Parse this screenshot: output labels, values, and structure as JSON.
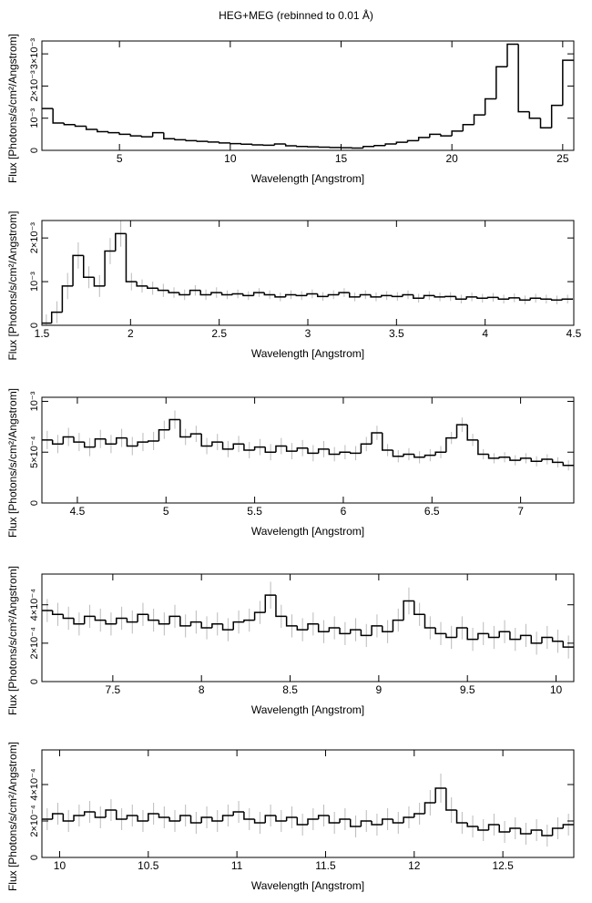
{
  "title": "HEG+MEG (rebinned to 0.01 Å)",
  "chart_data": [
    {
      "type": "step",
      "x_label": "Wavelength [Angstrom]",
      "y_label": "Flux [Photons/s/cm²/Angstrom]",
      "color": "#000000",
      "xlim": [
        1.5,
        25.5
      ],
      "ylim": [
        0,
        0.0034
      ],
      "xticks": [
        5,
        10,
        15,
        20,
        25
      ],
      "yticks": [
        0,
        {
          "value": 0.001,
          "label": "10⁻³"
        },
        {
          "value": 0.002,
          "label": "2×10⁻³"
        },
        {
          "value": 0.003,
          "label": "3×10⁻³"
        }
      ],
      "x": [
        1.75,
        2.25,
        2.75,
        3.25,
        3.75,
        4.25,
        4.75,
        5.25,
        5.75,
        6.25,
        6.75,
        7.25,
        7.75,
        8.25,
        8.75,
        9.25,
        9.75,
        10.25,
        10.75,
        11.25,
        11.75,
        12.25,
        12.75,
        13.25,
        13.75,
        14.25,
        14.75,
        15.25,
        15.75,
        16.25,
        16.75,
        17.25,
        17.75,
        18.25,
        18.75,
        19.25,
        19.75,
        20.25,
        20.75,
        21.25,
        21.75,
        22.25,
        22.75,
        23.25,
        23.75,
        24.25,
        24.75,
        25.25
      ],
      "values": [
        0.0013,
        0.00085,
        0.0008,
        0.00075,
        0.00065,
        0.00058,
        0.00055,
        0.0005,
        0.00045,
        0.00042,
        0.00055,
        0.00036,
        0.00033,
        0.0003,
        0.00028,
        0.00026,
        0.00023,
        0.00021,
        0.00019,
        0.00017,
        0.00016,
        0.0002,
        0.00014,
        0.00012,
        0.00011,
        0.0001,
        9e-05,
        8e-05,
        7e-05,
        0.00012,
        0.00015,
        0.0002,
        0.00025,
        0.0003,
        0.0004,
        0.0005,
        0.00045,
        0.0006,
        0.0008,
        0.0011,
        0.0016,
        0.0026,
        0.0033,
        0.0012,
        0.001,
        0.0007,
        0.0014,
        0.0028
      ]
    },
    {
      "type": "step",
      "x_label": "Wavelength [Angstrom]",
      "y_label": "Flux [Photons/s/cm²/Angstrom]",
      "color": "#000000",
      "error_color": "#bbbbbb",
      "xlim": [
        1.5,
        4.5
      ],
      "ylim": [
        0,
        0.0024
      ],
      "xticks": [
        1.5,
        2,
        2.5,
        3,
        3.5,
        4,
        4.5
      ],
      "yticks": [
        0,
        {
          "value": 0.001,
          "label": "10⁻³"
        },
        {
          "value": 0.002,
          "label": "2×10⁻³"
        }
      ],
      "x": [
        1.525,
        1.585,
        1.645,
        1.705,
        1.765,
        1.825,
        1.885,
        1.945,
        2.005,
        2.065,
        2.125,
        2.185,
        2.245,
        2.305,
        2.365,
        2.425,
        2.485,
        2.545,
        2.605,
        2.665,
        2.725,
        2.785,
        2.845,
        2.905,
        2.965,
        3.025,
        3.085,
        3.145,
        3.205,
        3.265,
        3.325,
        3.385,
        3.445,
        3.505,
        3.565,
        3.625,
        3.685,
        3.745,
        3.805,
        3.865,
        3.925,
        3.985,
        4.045,
        4.105,
        4.165,
        4.225,
        4.285,
        4.345,
        4.405,
        4.465
      ],
      "values": [
        5e-05,
        0.0003,
        0.0009,
        0.0016,
        0.0011,
        0.0009,
        0.0017,
        0.0021,
        0.001,
        0.0009,
        0.00085,
        0.0008,
        0.00075,
        0.0007,
        0.0008,
        0.0007,
        0.00075,
        0.0007,
        0.00072,
        0.00068,
        0.00075,
        0.0007,
        0.00065,
        0.0007,
        0.00068,
        0.00072,
        0.00066,
        0.0007,
        0.00075,
        0.00065,
        0.0007,
        0.00065,
        0.00068,
        0.00066,
        0.0007,
        0.00062,
        0.00068,
        0.00065,
        0.00066,
        0.0006,
        0.00065,
        0.00062,
        0.00064,
        0.0006,
        0.00063,
        0.00058,
        0.00062,
        0.0006,
        0.00058,
        0.0006
      ],
      "errors": [
        0.0002,
        0.00025,
        0.0003,
        0.0003,
        0.00025,
        0.00025,
        0.0003,
        0.0003,
        0.0002,
        0.00015,
        0.00015,
        0.00015,
        0.00012,
        0.00012,
        0.00012,
        0.00012,
        0.00012,
        0.0001,
        0.0001,
        0.0001,
        0.0001,
        0.0001,
        0.0001,
        0.0001,
        0.0001,
        0.0001,
        0.0001,
        0.0001,
        0.0001,
        0.0001,
        0.0001,
        0.0001,
        0.0001,
        0.0001,
        0.0001,
        0.0001,
        0.0001,
        0.0001,
        0.0001,
        0.0001,
        0.0001,
        0.0001,
        0.0001,
        0.0001,
        0.0001,
        0.0001,
        0.0001,
        0.0001,
        0.0001,
        0.0001
      ]
    },
    {
      "type": "step",
      "x_label": "Wavelength [Angstrom]",
      "y_label": "Flux [Photons/s/cm²/Angstrom]",
      "color": "#000000",
      "error_color": "#bbbbbb",
      "xlim": [
        4.3,
        7.3
      ],
      "ylim": [
        0,
        0.00104
      ],
      "xticks": [
        4.5,
        5,
        5.5,
        6,
        6.5,
        7
      ],
      "yticks": [
        0,
        {
          "value": 0.0005,
          "label": "5×10⁻⁴"
        },
        {
          "value": 0.001,
          "label": "10⁻³"
        }
      ],
      "x": [
        4.33,
        4.39,
        4.45,
        4.51,
        4.57,
        4.63,
        4.69,
        4.75,
        4.81,
        4.87,
        4.93,
        4.99,
        5.05,
        5.11,
        5.17,
        5.23,
        5.29,
        5.35,
        5.41,
        5.47,
        5.53,
        5.59,
        5.65,
        5.71,
        5.77,
        5.83,
        5.89,
        5.95,
        6.01,
        6.07,
        6.13,
        6.19,
        6.25,
        6.31,
        6.37,
        6.43,
        6.49,
        6.55,
        6.61,
        6.67,
        6.73,
        6.79,
        6.85,
        6.91,
        6.97,
        7.03,
        7.09,
        7.15,
        7.21,
        7.27
      ],
      "values": [
        0.00062,
        0.00058,
        0.00065,
        0.0006,
        0.00055,
        0.00063,
        0.00058,
        0.00064,
        0.00056,
        0.0006,
        0.00061,
        0.00072,
        0.00082,
        0.00065,
        0.00068,
        0.00056,
        0.0006,
        0.00053,
        0.00058,
        0.00052,
        0.00055,
        0.0005,
        0.00056,
        0.00051,
        0.00054,
        0.00049,
        0.00053,
        0.00048,
        0.0005,
        0.00049,
        0.00058,
        0.00069,
        0.00052,
        0.00046,
        0.00048,
        0.00045,
        0.00047,
        0.0005,
        0.00064,
        0.00077,
        0.00062,
        0.00048,
        0.00044,
        0.00045,
        0.00042,
        0.00044,
        0.00041,
        0.00043,
        0.0004,
        0.00037
      ],
      "errors": [
        9e-05,
        9e-05,
        9e-05,
        9e-05,
        9e-05,
        9e-05,
        9e-05,
        9e-05,
        9e-05,
        9e-05,
        9e-05,
        9e-05,
        9e-05,
        8e-05,
        8e-05,
        8e-05,
        8e-05,
        8e-05,
        8e-05,
        8e-05,
        8e-05,
        8e-05,
        8e-05,
        8e-05,
        8e-05,
        8e-05,
        8e-05,
        7e-05,
        7e-05,
        7e-05,
        7e-05,
        7e-05,
        6e-05,
        6e-05,
        6e-05,
        6e-05,
        6e-05,
        6e-05,
        6e-05,
        7e-05,
        6e-05,
        5e-05,
        5e-05,
        5e-05,
        5e-05,
        5e-05,
        5e-05,
        5e-05,
        5e-05,
        5e-05
      ]
    },
    {
      "type": "step",
      "x_label": "Wavelength [Angstrom]",
      "y_label": "Flux [Photons/s/cm²/Angstrom]",
      "color": "#000000",
      "error_color": "#bbbbbb",
      "xlim": [
        7.1,
        10.1
      ],
      "ylim": [
        0,
        0.00056
      ],
      "xticks": [
        7.5,
        8,
        8.5,
        9,
        9.5,
        10
      ],
      "yticks": [
        0,
        {
          "value": 0.0002,
          "label": "2×10⁻⁴"
        },
        {
          "value": 0.0004,
          "label": "4×10⁻⁴"
        }
      ],
      "x": [
        7.13,
        7.19,
        7.25,
        7.31,
        7.37,
        7.43,
        7.49,
        7.55,
        7.61,
        7.67,
        7.73,
        7.79,
        7.85,
        7.91,
        7.97,
        8.03,
        8.09,
        8.15,
        8.21,
        8.27,
        8.33,
        8.39,
        8.45,
        8.51,
        8.57,
        8.63,
        8.69,
        8.75,
        8.81,
        8.87,
        8.93,
        8.99,
        9.05,
        9.11,
        9.17,
        9.23,
        9.29,
        9.35,
        9.41,
        9.47,
        9.53,
        9.59,
        9.65,
        9.71,
        9.77,
        9.83,
        9.89,
        9.95,
        10.01,
        10.07
      ],
      "values": [
        0.00037,
        0.00035,
        0.00033,
        0.0003,
        0.00034,
        0.00032,
        0.0003,
        0.00033,
        0.00031,
        0.00035,
        0.00032,
        0.0003,
        0.00034,
        0.00029,
        0.00031,
        0.00028,
        0.0003,
        0.00027,
        0.00031,
        0.00032,
        0.00036,
        0.00045,
        0.00034,
        0.00029,
        0.00027,
        0.0003,
        0.00026,
        0.00028,
        0.00025,
        0.00027,
        0.00024,
        0.00029,
        0.00026,
        0.00032,
        0.00042,
        0.00035,
        0.00028,
        0.00025,
        0.00023,
        0.00028,
        0.00022,
        0.00025,
        0.00023,
        0.00026,
        0.00022,
        0.00024,
        0.0002,
        0.00023,
        0.00021,
        0.00018
      ],
      "errors": [
        6e-05,
        6e-05,
        6e-05,
        6e-05,
        6e-05,
        6e-05,
        6e-05,
        6e-05,
        6e-05,
        6e-05,
        6e-05,
        6e-05,
        6e-05,
        6e-05,
        6e-05,
        6e-05,
        6e-05,
        6e-05,
        6e-05,
        6e-05,
        6e-05,
        7e-05,
        6e-05,
        6e-05,
        6e-05,
        6e-05,
        6e-05,
        6e-05,
        6e-05,
        6e-05,
        6e-05,
        6e-05,
        6e-05,
        6e-05,
        7e-05,
        6e-05,
        6e-05,
        6e-05,
        6e-05,
        6e-05,
        6e-05,
        6e-05,
        6e-05,
        6e-05,
        6e-05,
        6e-05,
        6e-05,
        6e-05,
        6e-05,
        6e-05
      ]
    },
    {
      "type": "step",
      "x_label": "Wavelength [Angstrom]",
      "y_label": "Flux [Photons/s/cm²/Angstrom]",
      "color": "#000000",
      "error_color": "#bbbbbb",
      "xlim": [
        9.9,
        12.9
      ],
      "ylim": [
        0,
        0.00059
      ],
      "xticks": [
        10,
        10.5,
        11,
        11.5,
        12,
        12.5
      ],
      "yticks": [
        0,
        {
          "value": 0.0002,
          "label": "2×10⁻⁴"
        },
        {
          "value": 0.0004,
          "label": "4×10⁻⁴"
        }
      ],
      "x": [
        9.93,
        9.99,
        10.05,
        10.11,
        10.17,
        10.23,
        10.29,
        10.35,
        10.41,
        10.47,
        10.53,
        10.59,
        10.65,
        10.71,
        10.77,
        10.83,
        10.89,
        10.95,
        11.01,
        11.07,
        11.13,
        11.19,
        11.25,
        11.31,
        11.37,
        11.43,
        11.49,
        11.55,
        11.61,
        11.67,
        11.73,
        11.79,
        11.85,
        11.91,
        11.97,
        12.03,
        12.09,
        12.15,
        12.21,
        12.27,
        12.33,
        12.39,
        12.45,
        12.51,
        12.57,
        12.63,
        12.69,
        12.75,
        12.81,
        12.87
      ],
      "values": [
        0.00021,
        0.00024,
        0.0002,
        0.00023,
        0.00025,
        0.00022,
        0.00026,
        0.00021,
        0.00023,
        0.0002,
        0.00024,
        0.00022,
        0.0002,
        0.00023,
        0.00019,
        0.00022,
        0.0002,
        0.00023,
        0.00025,
        0.00021,
        0.00019,
        0.00023,
        0.0002,
        0.00022,
        0.00018,
        0.00021,
        0.00023,
        0.00019,
        0.00021,
        0.00017,
        0.0002,
        0.00018,
        0.00021,
        0.00019,
        0.00022,
        0.00024,
        0.0003,
        0.00038,
        0.00026,
        0.00019,
        0.00017,
        0.00015,
        0.00018,
        0.00014,
        0.00016,
        0.00013,
        0.00015,
        0.00012,
        0.00016,
        0.00018
      ],
      "errors": [
        6e-05,
        6e-05,
        6e-05,
        6e-05,
        6e-05,
        6e-05,
        6e-05,
        6e-05,
        6e-05,
        6e-05,
        6e-05,
        6e-05,
        6e-05,
        6e-05,
        6e-05,
        6e-05,
        6e-05,
        6e-05,
        6e-05,
        6e-05,
        6e-05,
        6e-05,
        6e-05,
        6e-05,
        6e-05,
        6e-05,
        6e-05,
        6e-05,
        6e-05,
        6e-05,
        6e-05,
        6e-05,
        6e-05,
        6e-05,
        6e-05,
        6e-05,
        7e-05,
        8e-05,
        7e-05,
        6e-05,
        6e-05,
        6e-05,
        6e-05,
        6e-05,
        6e-05,
        6e-05,
        6e-05,
        6e-05,
        6e-05,
        6e-05
      ]
    }
  ]
}
